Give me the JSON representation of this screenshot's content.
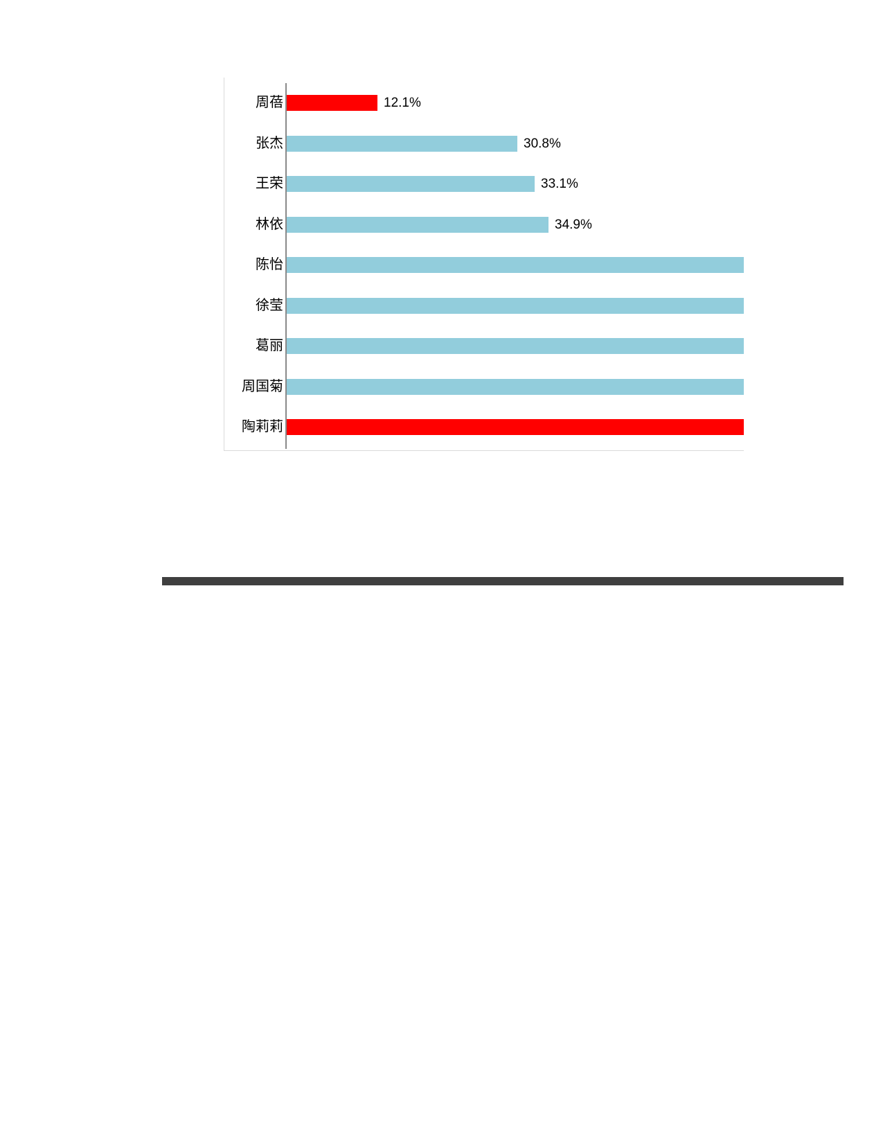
{
  "page": {
    "background": "#FFFFFF"
  },
  "chart_data": {
    "type": "bar",
    "orientation": "horizontal",
    "title": "",
    "xlabel": "",
    "ylabel": "",
    "grid": "off",
    "legend": "none",
    "categories": [
      "周蓓",
      "张杰",
      "王荣",
      "林依",
      "陈怡",
      "徐莹",
      "葛丽",
      "周国菊",
      "陶莉莉"
    ],
    "values": [
      12.1,
      30.8,
      33.1,
      34.9,
      null,
      null,
      null,
      null,
      null
    ],
    "value_labels": [
      "12.1%",
      "30.8%",
      "33.1%",
      "34.9%",
      "",
      "",
      "",
      "",
      ""
    ],
    "bar_colors": [
      "#FF0000",
      "#92CDDC",
      "#92CDDC",
      "#92CDDC",
      "#92CDDC",
      "#92CDDC",
      "#92CDDC",
      "#92CDDC",
      "#FF0000"
    ],
    "clipped_bars": [
      false,
      false,
      false,
      false,
      true,
      true,
      true,
      true,
      true
    ],
    "x_axis_visible_max": 61,
    "axis_line_color": "#898989",
    "frame_border_color": "#D9D9D9"
  },
  "divider": {
    "color": "#3F3F3F"
  }
}
